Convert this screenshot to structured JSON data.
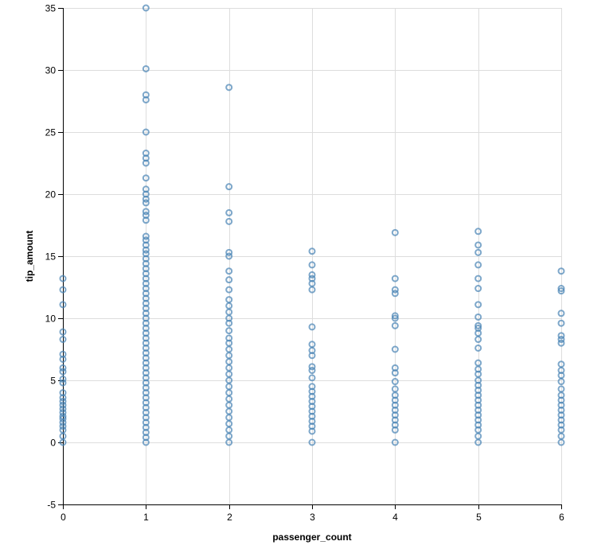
{
  "chart_data": {
    "type": "scatter",
    "title": "",
    "xlabel": "passenger_count",
    "ylabel": "tip_amount",
    "xlim": [
      0,
      6
    ],
    "ylim": [
      -5,
      35
    ],
    "x_ticks": [
      0,
      1,
      2,
      3,
      4,
      5,
      6
    ],
    "y_ticks": [
      -5,
      0,
      5,
      10,
      15,
      20,
      25,
      30,
      35
    ],
    "grid": true,
    "point_color": "#4682b4",
    "series": [
      {
        "name": "tip_amount",
        "points": [
          {
            "x": 0,
            "y": 0
          },
          {
            "x": 0,
            "y": 0.5
          },
          {
            "x": 0,
            "y": 1
          },
          {
            "x": 0,
            "y": 1.3
          },
          {
            "x": 0,
            "y": 1.6
          },
          {
            "x": 0,
            "y": 1.9
          },
          {
            "x": 0,
            "y": 2.1
          },
          {
            "x": 0,
            "y": 2.4
          },
          {
            "x": 0,
            "y": 2.7
          },
          {
            "x": 0,
            "y": 3
          },
          {
            "x": 0,
            "y": 3.3
          },
          {
            "x": 0,
            "y": 3.6
          },
          {
            "x": 0,
            "y": 4
          },
          {
            "x": 0,
            "y": 4.8
          },
          {
            "x": 0,
            "y": 5.1
          },
          {
            "x": 0,
            "y": 5.7
          },
          {
            "x": 0,
            "y": 6
          },
          {
            "x": 0,
            "y": 6.7
          },
          {
            "x": 0,
            "y": 7.1
          },
          {
            "x": 0,
            "y": 8.3
          },
          {
            "x": 0,
            "y": 8.9
          },
          {
            "x": 0,
            "y": 11.1
          },
          {
            "x": 0,
            "y": 12.3
          },
          {
            "x": 0,
            "y": 13.2
          },
          {
            "x": 1,
            "y": 0
          },
          {
            "x": 1,
            "y": 0.4
          },
          {
            "x": 1,
            "y": 0.8
          },
          {
            "x": 1,
            "y": 1.2
          },
          {
            "x": 1,
            "y": 1.6
          },
          {
            "x": 1,
            "y": 2
          },
          {
            "x": 1,
            "y": 2.4
          },
          {
            "x": 1,
            "y": 2.8
          },
          {
            "x": 1,
            "y": 3.2
          },
          {
            "x": 1,
            "y": 3.6
          },
          {
            "x": 1,
            "y": 4
          },
          {
            "x": 1,
            "y": 4.4
          },
          {
            "x": 1,
            "y": 4.8
          },
          {
            "x": 1,
            "y": 5.2
          },
          {
            "x": 1,
            "y": 5.6
          },
          {
            "x": 1,
            "y": 6
          },
          {
            "x": 1,
            "y": 6.4
          },
          {
            "x": 1,
            "y": 6.8
          },
          {
            "x": 1,
            "y": 7.2
          },
          {
            "x": 1,
            "y": 7.6
          },
          {
            "x": 1,
            "y": 8
          },
          {
            "x": 1,
            "y": 8.4
          },
          {
            "x": 1,
            "y": 8.8
          },
          {
            "x": 1,
            "y": 9.2
          },
          {
            "x": 1,
            "y": 9.6
          },
          {
            "x": 1,
            "y": 10
          },
          {
            "x": 1,
            "y": 10.4
          },
          {
            "x": 1,
            "y": 10.8
          },
          {
            "x": 1,
            "y": 11.2
          },
          {
            "x": 1,
            "y": 11.6
          },
          {
            "x": 1,
            "y": 12
          },
          {
            "x": 1,
            "y": 12.4
          },
          {
            "x": 1,
            "y": 12.8
          },
          {
            "x": 1,
            "y": 13.2
          },
          {
            "x": 1,
            "y": 13.6
          },
          {
            "x": 1,
            "y": 14
          },
          {
            "x": 1,
            "y": 14.4
          },
          {
            "x": 1,
            "y": 14.8
          },
          {
            "x": 1,
            "y": 15.2
          },
          {
            "x": 1,
            "y": 15.5
          },
          {
            "x": 1,
            "y": 15.9
          },
          {
            "x": 1,
            "y": 16.3
          },
          {
            "x": 1,
            "y": 16.6
          },
          {
            "x": 1,
            "y": 17.9
          },
          {
            "x": 1,
            "y": 18.3
          },
          {
            "x": 1,
            "y": 18.6
          },
          {
            "x": 1,
            "y": 19.3
          },
          {
            "x": 1,
            "y": 19.6
          },
          {
            "x": 1,
            "y": 20
          },
          {
            "x": 1,
            "y": 20.4
          },
          {
            "x": 1,
            "y": 21.3
          },
          {
            "x": 1,
            "y": 22.5
          },
          {
            "x": 1,
            "y": 22.9
          },
          {
            "x": 1,
            "y": 23.3
          },
          {
            "x": 1,
            "y": 25
          },
          {
            "x": 1,
            "y": 27.6
          },
          {
            "x": 1,
            "y": 28
          },
          {
            "x": 1,
            "y": 30.1
          },
          {
            "x": 1,
            "y": 35
          },
          {
            "x": 2,
            "y": 0
          },
          {
            "x": 2,
            "y": 0.5
          },
          {
            "x": 2,
            "y": 1
          },
          {
            "x": 2,
            "y": 1.5
          },
          {
            "x": 2,
            "y": 2
          },
          {
            "x": 2,
            "y": 2.5
          },
          {
            "x": 2,
            "y": 3
          },
          {
            "x": 2,
            "y": 3.5
          },
          {
            "x": 2,
            "y": 4
          },
          {
            "x": 2,
            "y": 4.5
          },
          {
            "x": 2,
            "y": 5
          },
          {
            "x": 2,
            "y": 5.5
          },
          {
            "x": 2,
            "y": 6
          },
          {
            "x": 2,
            "y": 6.5
          },
          {
            "x": 2,
            "y": 7
          },
          {
            "x": 2,
            "y": 7.5
          },
          {
            "x": 2,
            "y": 8
          },
          {
            "x": 2,
            "y": 8.4
          },
          {
            "x": 2,
            "y": 9
          },
          {
            "x": 2,
            "y": 9.6
          },
          {
            "x": 2,
            "y": 10
          },
          {
            "x": 2,
            "y": 10.5
          },
          {
            "x": 2,
            "y": 11
          },
          {
            "x": 2,
            "y": 11.5
          },
          {
            "x": 2,
            "y": 12.3
          },
          {
            "x": 2,
            "y": 13.1
          },
          {
            "x": 2,
            "y": 13.8
          },
          {
            "x": 2,
            "y": 15
          },
          {
            "x": 2,
            "y": 15.3
          },
          {
            "x": 2,
            "y": 17.8
          },
          {
            "x": 2,
            "y": 18.5
          },
          {
            "x": 2,
            "y": 20.6
          },
          {
            "x": 2,
            "y": 28.6
          },
          {
            "x": 3,
            "y": 0
          },
          {
            "x": 3,
            "y": 0.9
          },
          {
            "x": 3,
            "y": 1.3
          },
          {
            "x": 3,
            "y": 1.7
          },
          {
            "x": 3,
            "y": 2.1
          },
          {
            "x": 3,
            "y": 2.5
          },
          {
            "x": 3,
            "y": 2.9
          },
          {
            "x": 3,
            "y": 3.3
          },
          {
            "x": 3,
            "y": 3.7
          },
          {
            "x": 3,
            "y": 4.1
          },
          {
            "x": 3,
            "y": 4.5
          },
          {
            "x": 3,
            "y": 5.2
          },
          {
            "x": 3,
            "y": 5.8
          },
          {
            "x": 3,
            "y": 6.1
          },
          {
            "x": 3,
            "y": 7
          },
          {
            "x": 3,
            "y": 7.4
          },
          {
            "x": 3,
            "y": 7.9
          },
          {
            "x": 3,
            "y": 9.3
          },
          {
            "x": 3,
            "y": 12.3
          },
          {
            "x": 3,
            "y": 12.8
          },
          {
            "x": 3,
            "y": 13.2
          },
          {
            "x": 3,
            "y": 13.5
          },
          {
            "x": 3,
            "y": 14.3
          },
          {
            "x": 3,
            "y": 15.4
          },
          {
            "x": 4,
            "y": 0
          },
          {
            "x": 4,
            "y": 1
          },
          {
            "x": 4,
            "y": 1.4
          },
          {
            "x": 4,
            "y": 1.8
          },
          {
            "x": 4,
            "y": 2.2
          },
          {
            "x": 4,
            "y": 2.6
          },
          {
            "x": 4,
            "y": 3
          },
          {
            "x": 4,
            "y": 3.4
          },
          {
            "x": 4,
            "y": 3.8
          },
          {
            "x": 4,
            "y": 4.3
          },
          {
            "x": 4,
            "y": 4.9
          },
          {
            "x": 4,
            "y": 5.6
          },
          {
            "x": 4,
            "y": 6
          },
          {
            "x": 4,
            "y": 7.5
          },
          {
            "x": 4,
            "y": 9.4
          },
          {
            "x": 4,
            "y": 10
          },
          {
            "x": 4,
            "y": 10.2
          },
          {
            "x": 4,
            "y": 12
          },
          {
            "x": 4,
            "y": 12.3
          },
          {
            "x": 4,
            "y": 13.2
          },
          {
            "x": 4,
            "y": 16.9
          },
          {
            "x": 5,
            "y": 0
          },
          {
            "x": 5,
            "y": 0.5
          },
          {
            "x": 5,
            "y": 1
          },
          {
            "x": 5,
            "y": 1.4
          },
          {
            "x": 5,
            "y": 1.8
          },
          {
            "x": 5,
            "y": 2.2
          },
          {
            "x": 5,
            "y": 2.6
          },
          {
            "x": 5,
            "y": 3
          },
          {
            "x": 5,
            "y": 3.4
          },
          {
            "x": 5,
            "y": 3.8
          },
          {
            "x": 5,
            "y": 4.2
          },
          {
            "x": 5,
            "y": 4.6
          },
          {
            "x": 5,
            "y": 5
          },
          {
            "x": 5,
            "y": 5.5
          },
          {
            "x": 5,
            "y": 5.9
          },
          {
            "x": 5,
            "y": 6.4
          },
          {
            "x": 5,
            "y": 7.6
          },
          {
            "x": 5,
            "y": 8.3
          },
          {
            "x": 5,
            "y": 8.8
          },
          {
            "x": 5,
            "y": 9.2
          },
          {
            "x": 5,
            "y": 9.4
          },
          {
            "x": 5,
            "y": 10.1
          },
          {
            "x": 5,
            "y": 11.1
          },
          {
            "x": 5,
            "y": 12.4
          },
          {
            "x": 5,
            "y": 13.2
          },
          {
            "x": 5,
            "y": 14.3
          },
          {
            "x": 5,
            "y": 15.3
          },
          {
            "x": 5,
            "y": 15.9
          },
          {
            "x": 5,
            "y": 17
          },
          {
            "x": 6,
            "y": 0
          },
          {
            "x": 6,
            "y": 0.5
          },
          {
            "x": 6,
            "y": 1
          },
          {
            "x": 6,
            "y": 1.4
          },
          {
            "x": 6,
            "y": 1.8
          },
          {
            "x": 6,
            "y": 2.2
          },
          {
            "x": 6,
            "y": 2.6
          },
          {
            "x": 6,
            "y": 3
          },
          {
            "x": 6,
            "y": 3.4
          },
          {
            "x": 6,
            "y": 3.8
          },
          {
            "x": 6,
            "y": 4.3
          },
          {
            "x": 6,
            "y": 4.9
          },
          {
            "x": 6,
            "y": 5.4
          },
          {
            "x": 6,
            "y": 5.8
          },
          {
            "x": 6,
            "y": 6.3
          },
          {
            "x": 6,
            "y": 8
          },
          {
            "x": 6,
            "y": 8.3
          },
          {
            "x": 6,
            "y": 8.6
          },
          {
            "x": 6,
            "y": 9.6
          },
          {
            "x": 6,
            "y": 10.4
          },
          {
            "x": 6,
            "y": 12.2
          },
          {
            "x": 6,
            "y": 12.4
          },
          {
            "x": 6,
            "y": 13.8
          }
        ]
      }
    ]
  }
}
